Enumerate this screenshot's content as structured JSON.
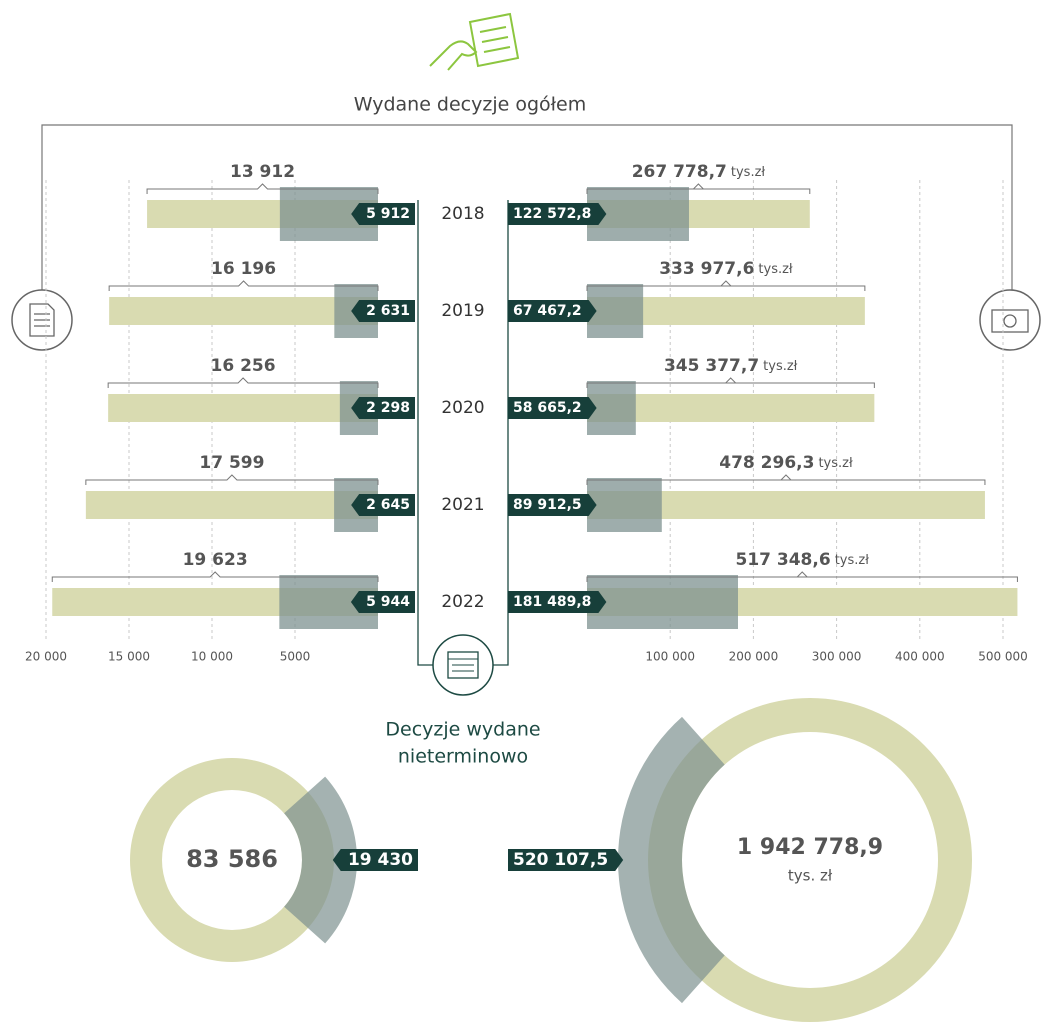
{
  "title": "Wydane decyzje ogółem",
  "subtitle": [
    "Decyzje wydane",
    "nieterminowo"
  ],
  "chart_data": [
    {
      "type": "bar",
      "orientation": "horizontal",
      "mirrored": true,
      "categories": [
        "2018",
        "2019",
        "2020",
        "2021",
        "2022"
      ],
      "series": [
        {
          "color": "#d9dbb1",
          "values": [
            13912,
            16196,
            16256,
            17599,
            19623
          ],
          "value_labels": [
            "13 912",
            "16 196",
            "16 256",
            "17 599",
            "19 623"
          ]
        },
        {
          "color": "#7d9190",
          "values": [
            5912,
            2631,
            2298,
            2645,
            5944
          ],
          "value_labels": [
            "5 912",
            "2 631",
            "2 298",
            "2 645",
            "5 944"
          ]
        }
      ],
      "xlim": [
        0,
        20000
      ],
      "xticks": [
        {
          "value": 20000,
          "label": "20 000"
        },
        {
          "value": 15000,
          "label": "15 000"
        },
        {
          "value": 10000,
          "label": "10 000"
        },
        5000
      ],
      "grid": true
    },
    {
      "type": "bar",
      "orientation": "horizontal",
      "mirrored": false,
      "unit": "tys.zł",
      "categories": [
        "2018",
        "2019",
        "2020",
        "2021",
        "2022"
      ],
      "series": [
        {
          "color": "#d9dbb1",
          "values": [
            267778.7,
            333977.6,
            345377.7,
            478296.3,
            517348.6
          ],
          "value_labels": [
            "267 778,7",
            "333 977,6",
            "345 377,7",
            "478 296,3",
            "517 348,6"
          ]
        },
        {
          "color": "#7d9190",
          "values": [
            122572.8,
            67467.2,
            58665.2,
            89912.5,
            181489.8
          ],
          "value_labels": [
            "122 572,8",
            "67 467,2",
            "58 665,2",
            "89 912,5",
            "181 489,8"
          ]
        }
      ],
      "xlim": [
        0,
        500000
      ],
      "xticks": [
        {
          "value": 100000,
          "label": "100 000"
        },
        {
          "value": 200000,
          "label": "200 000"
        },
        {
          "value": 300000,
          "label": "300 000"
        },
        {
          "value": 400000,
          "label": "400 000"
        },
        {
          "value": 500000,
          "label": "500 000"
        }
      ],
      "grid": true
    },
    {
      "type": "donut",
      "total": 83586,
      "total_label": "83 586",
      "part": 19430,
      "part_label": "19 430",
      "ring_color": "#d9dbb1",
      "part_color": "#7d9190",
      "side": "right"
    },
    {
      "type": "donut",
      "total": 1942778.9,
      "total_label": "1 942 778,9",
      "unit": "tys. zł",
      "part": 520107.5,
      "part_label": "520 107,5",
      "ring_color": "#d9dbb1",
      "part_color": "#7d9190",
      "side": "left"
    }
  ]
}
